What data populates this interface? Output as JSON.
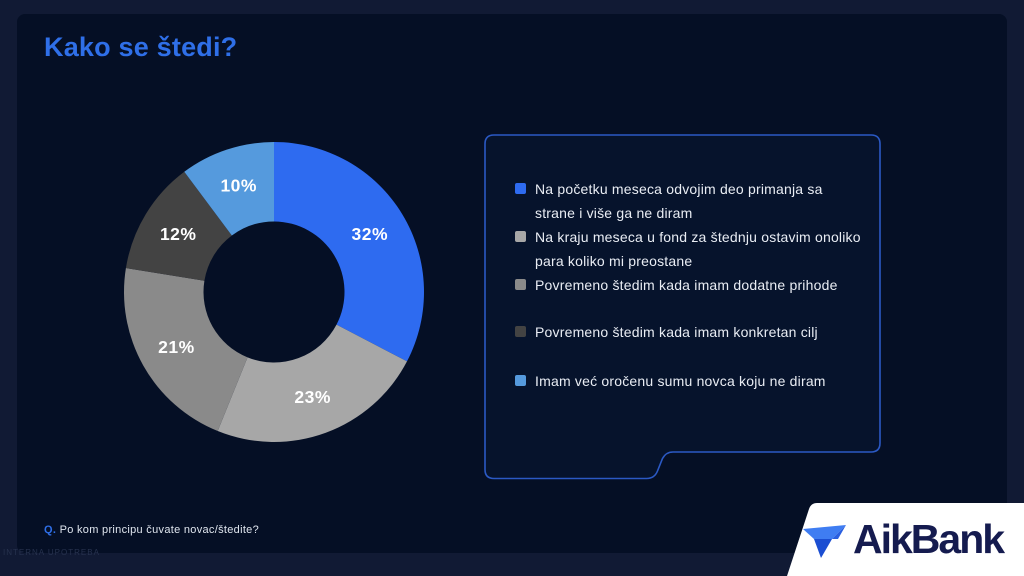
{
  "slide": {
    "title": "Kako se štedi?",
    "footnote_q": "Q.",
    "footnote_text": "Po kom principu čuvate novac/štedite?",
    "watermark": "INTERNA UPOTREBA"
  },
  "colors": {
    "outer_background": "#111a34",
    "slide_background": "#050f25",
    "title_accent": "#2f6fe8",
    "legend_border": "#2b59c4",
    "legend_text": "#e9edf4",
    "percent_label": "#ffffff",
    "logo_panel": "#ffffff",
    "logo_text": "#151b4f"
  },
  "chart_data": {
    "type": "pie",
    "subtype": "donut",
    "title": "Kako se štedi?",
    "categories": [
      "Na početku meseca odvojim deo primanja sa strane i više ga ne diram",
      "Na kraju meseca u fond za štednju ostavim onoliko para koliko mi preostane",
      "Povremeno štedim kada imam dodatne prihode",
      "Povremeno štedim kada imam konkretan cilj",
      "Imam već oročenu sumu novca koju ne diram"
    ],
    "values": [
      32,
      23,
      21,
      12,
      10
    ],
    "value_labels": [
      "32%",
      "23%",
      "21%",
      "12%",
      "10%"
    ],
    "colors": [
      "#2e6bf0",
      "#a7a7a7",
      "#8a8a8a",
      "#434343",
      "#559add"
    ],
    "donut_hole_ratio": 0.47,
    "start_angle_deg": 0,
    "direction": "clockwise",
    "legend_position": "right",
    "data_labels": "inside"
  },
  "logo": {
    "name": "AikBank",
    "text": "AikBank"
  }
}
